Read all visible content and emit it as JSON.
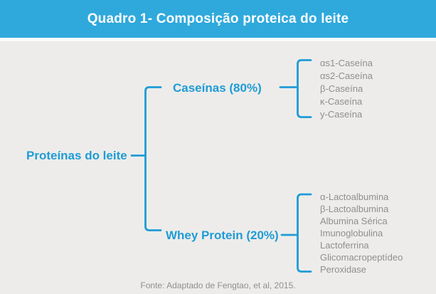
{
  "colors": {
    "header_bg": "#2FA9DC",
    "accent": "#1E9CD6",
    "leaf_text": "#8F8F8F",
    "panel_bg": "#EDECEA",
    "page_bg": "#FBFBFB"
  },
  "header": {
    "title": "Quadro 1- Composição proteica do leite"
  },
  "tree": {
    "root": "Proteínas do leite",
    "branches": [
      {
        "label": "Caseínas (80%)",
        "items": [
          "αs1-Caseína",
          "αs2-Caseína",
          "β-Caseína",
          "κ-Caseína",
          "y-Caseína"
        ]
      },
      {
        "label": "Whey Protein (20%)",
        "items": [
          "α-Lactoalbumina",
          "β-Lactoalbumina",
          "Albumina Sérica",
          "Imunoglobulina",
          "Lactoferrina",
          "Glicomacropeptídeo",
          "Peroxidase"
        ]
      }
    ]
  },
  "footer": {
    "source": "Fonte: Adaptado de Fengtao, et al, 2015."
  }
}
